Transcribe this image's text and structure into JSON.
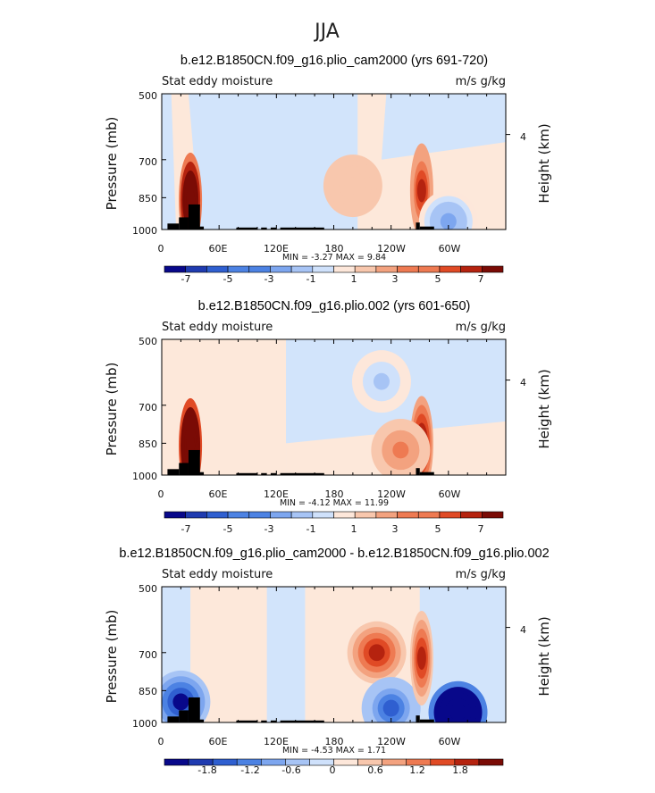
{
  "suptitle": "JJA",
  "colors": {
    "bins": [
      "#08088a",
      "#1f3bb0",
      "#2f5fd0",
      "#4c82e3",
      "#7da6ef",
      "#a7c4f5",
      "#cfe1fb",
      "#fde7da",
      "#f8c7ad",
      "#f3a27f",
      "#ee7a52",
      "#e04a25",
      "#b5230f",
      "#7a0b05"
    ],
    "bg_neutral": "#d2e4fb",
    "bg_warm": "#fde8da",
    "land": "#000000"
  },
  "chart_data": [
    {
      "type": "heatmap",
      "title": "b.e12.B1850CN.f09_g16.plio_cam2000 (yrs 691-720)",
      "left_label": "Stat eddy moisture",
      "right_label": "m/s g/kg",
      "ylabel": "Pressure (mb)",
      "y2label": "Height (km)",
      "yticks": [
        "500",
        "700",
        "850",
        "1000"
      ],
      "y2ticks": [
        "4"
      ],
      "xticks": [
        "0",
        "60E",
        "120E",
        "180",
        "120W",
        "60W"
      ],
      "minmax": "MIN =  -3.27   MAX =   9.84",
      "colorbar_labels": [
        "-7",
        "-5",
        "-3",
        "-1",
        "1",
        "3",
        "5",
        "7"
      ],
      "colorbar_levels": [
        -8,
        -7,
        -6,
        -5,
        -4,
        -3,
        -2,
        -1,
        0,
        1,
        2,
        3,
        4,
        5,
        6,
        7,
        8
      ],
      "xlim": [
        0,
        360
      ],
      "ylim": [
        1000,
        500
      ],
      "features": [
        {
          "lon": 30,
          "p": 860,
          "value": 9.84
        },
        {
          "lon": 272,
          "p": 820,
          "value": 4.5
        },
        {
          "lon": 300,
          "p": 960,
          "value": -3.27
        },
        {
          "lon": 200,
          "p": 800,
          "value": 0.5
        }
      ]
    },
    {
      "type": "heatmap",
      "title": "b.e12.B1850CN.f09_g16.plio.002 (yrs 601-650)",
      "left_label": "Stat eddy moisture",
      "right_label": "m/s g/kg",
      "ylabel": "Pressure (mb)",
      "y2label": "Height (km)",
      "yticks": [
        "500",
        "700",
        "850",
        "1000"
      ],
      "y2ticks": [
        "4"
      ],
      "xticks": [
        "0",
        "60E",
        "120E",
        "180",
        "120W",
        "60W"
      ],
      "minmax": "MIN =  -4.12   MAX =  11.99",
      "colorbar_labels": [
        "-7",
        "-5",
        "-3",
        "-1",
        "1",
        "3",
        "5",
        "7"
      ],
      "colorbar_levels": [
        -8,
        -7,
        -6,
        -5,
        -4,
        -3,
        -2,
        -1,
        0,
        1,
        2,
        3,
        4,
        5,
        6,
        7,
        8
      ],
      "xlim": [
        0,
        360
      ],
      "ylim": [
        1000,
        500
      ],
      "features": [
        {
          "lon": 30,
          "p": 860,
          "value": 11.99
        },
        {
          "lon": 230,
          "p": 620,
          "value": -2.0
        },
        {
          "lon": 272,
          "p": 850,
          "value": 5.0
        },
        {
          "lon": 250,
          "p": 880,
          "value": 2.0
        }
      ]
    },
    {
      "type": "heatmap",
      "title": "b.e12.B1850CN.f09_g16.plio_cam2000 - b.e12.B1850CN.f09_g16.plio.002",
      "left_label": "Stat eddy moisture",
      "right_label": "m/s g/kg",
      "ylabel": "Pressure (mb)",
      "y2label": "Height (km)",
      "yticks": [
        "500",
        "700",
        "850",
        "1000"
      ],
      "y2ticks": [
        "4"
      ],
      "xticks": [
        "0",
        "60E",
        "120E",
        "180",
        "120W",
        "60W"
      ],
      "minmax": "MIN =  -4.53   MAX =   1.71",
      "colorbar_labels": [
        "-1.8",
        "-1.2",
        "-0.6",
        "0",
        "0.6",
        "1.2",
        "1.8"
      ],
      "colorbar_levels": [
        -2.1,
        -1.8,
        -1.5,
        -1.2,
        -0.9,
        -0.6,
        -0.3,
        0,
        0.3,
        0.6,
        0.9,
        1.2,
        1.5,
        1.8,
        2.1
      ],
      "xlim": [
        0,
        360
      ],
      "ylim": [
        1000,
        500
      ],
      "features": [
        {
          "lon": 225,
          "p": 700,
          "value": 1.71
        },
        {
          "lon": 310,
          "p": 950,
          "value": -4.53
        },
        {
          "lon": 20,
          "p": 900,
          "value": -1.8
        },
        {
          "lon": 240,
          "p": 930,
          "value": -1.2
        },
        {
          "lon": 272,
          "p": 720,
          "value": 1.5
        }
      ]
    }
  ]
}
